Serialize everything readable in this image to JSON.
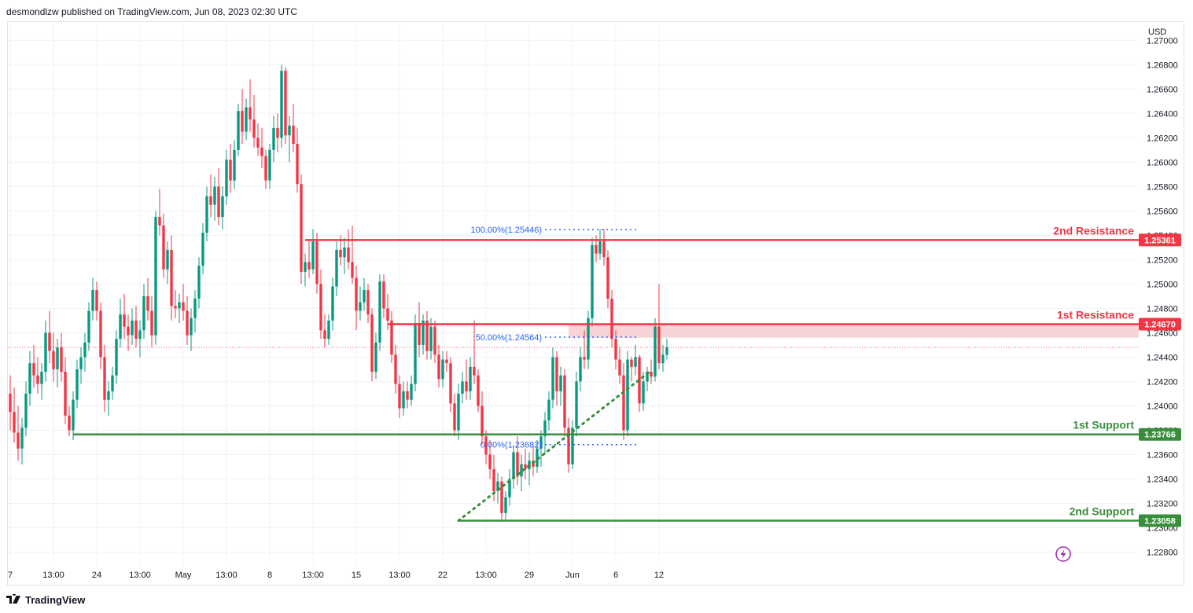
{
  "header": {
    "publisher_text": "desmondlzw published on TradingView.com, Jun 08, 2023 02:30 UTC"
  },
  "footer": {
    "brand": "TradingView"
  },
  "colors": {
    "up": "#089981",
    "down": "#f23645",
    "resistance": "#f23645",
    "support": "#388e3c",
    "fib": "#2962ff",
    "trendline": "#388e3c",
    "grid": "#f0f3fa",
    "zone": "#f8c9cd"
  },
  "chart_data": {
    "type": "candlestick",
    "currency_label": "USD",
    "ylim": [
      1.227,
      1.2715
    ],
    "y_ticks": [
      "1.27000",
      "1.26800",
      "1.26600",
      "1.26400",
      "1.26200",
      "1.26000",
      "1.25800",
      "1.25600",
      "1.25400",
      "1.25200",
      "1.25000",
      "1.24800",
      "1.24600",
      "1.24400",
      "1.24200",
      "1.24000",
      "1.23800",
      "1.23600",
      "1.23400",
      "1.23200",
      "1.23000",
      "1.22800"
    ],
    "x_ticks": [
      {
        "label": "7",
        "index": 0
      },
      {
        "label": "13:00",
        "index": 11
      },
      {
        "label": "24",
        "index": 22
      },
      {
        "label": "13:00",
        "index": 33
      },
      {
        "label": "May",
        "index": 44
      },
      {
        "label": "13:00",
        "index": 55
      },
      {
        "label": "8",
        "index": 66
      },
      {
        "label": "13:00",
        "index": 77
      },
      {
        "label": "15",
        "index": 88
      },
      {
        "label": "13:00",
        "index": 99
      },
      {
        "label": "22",
        "index": 110
      },
      {
        "label": "13:00",
        "index": 121
      },
      {
        "label": "29",
        "index": 132
      },
      {
        "label": "Jun",
        "index": 143
      },
      {
        "label": "6",
        "index": 154
      },
      {
        "label": "12",
        "index": 165
      }
    ],
    "candles": {
      "note": "OHLC values approximated from the chart; each candle is [open, high, low, close]",
      "ohlc": [
        [
          1.241,
          1.2425,
          1.238,
          1.2395
        ],
        [
          1.2395,
          1.2415,
          1.237,
          1.2378
        ],
        [
          1.2378,
          1.24,
          1.2355,
          1.2365
        ],
        [
          1.2365,
          1.239,
          1.2352,
          1.2382
        ],
        [
          1.2382,
          1.242,
          1.2375,
          1.241
        ],
        [
          1.241,
          1.2445,
          1.24,
          1.2435
        ],
        [
          1.2435,
          1.245,
          1.2415,
          1.2425
        ],
        [
          1.2425,
          1.244,
          1.241,
          1.2418
        ],
        [
          1.2418,
          1.2435,
          1.2405,
          1.2428
        ],
        [
          1.2428,
          1.247,
          1.242,
          1.246
        ],
        [
          1.246,
          1.2478,
          1.2435,
          1.2445
        ],
        [
          1.2445,
          1.246,
          1.242,
          1.243
        ],
        [
          1.243,
          1.2455,
          1.2415,
          1.2448
        ],
        [
          1.2448,
          1.246,
          1.242,
          1.2428
        ],
        [
          1.2428,
          1.244,
          1.2385,
          1.2392
        ],
        [
          1.2392,
          1.24,
          1.2375,
          1.238
        ],
        [
          1.238,
          1.2412,
          1.2372,
          1.2405
        ],
        [
          1.2405,
          1.2438,
          1.2398,
          1.243
        ],
        [
          1.243,
          1.2448,
          1.2418,
          1.244
        ],
        [
          1.244,
          1.246,
          1.2428,
          1.2452
        ],
        [
          1.2452,
          1.2485,
          1.2445,
          1.2478
        ],
        [
          1.2478,
          1.2505,
          1.247,
          1.2495
        ],
        [
          1.2495,
          1.2502,
          1.247,
          1.2478
        ],
        [
          1.2478,
          1.2485,
          1.243,
          1.244
        ],
        [
          1.244,
          1.245,
          1.2395,
          1.2405
        ],
        [
          1.2405,
          1.242,
          1.2392,
          1.2412
        ],
        [
          1.2412,
          1.2432,
          1.2405,
          1.2425
        ],
        [
          1.2425,
          1.2462,
          1.2418,
          1.2455
        ],
        [
          1.2455,
          1.2488,
          1.2448,
          1.2475
        ],
        [
          1.2475,
          1.2492,
          1.2455,
          1.2465
        ],
        [
          1.2465,
          1.2475,
          1.2445,
          1.2458
        ],
        [
          1.2458,
          1.248,
          1.245,
          1.247
        ],
        [
          1.247,
          1.2482,
          1.2448,
          1.2455
        ],
        [
          1.2455,
          1.247,
          1.244,
          1.2462
        ],
        [
          1.2462,
          1.25,
          1.2455,
          1.249
        ],
        [
          1.249,
          1.2505,
          1.247,
          1.2478
        ],
        [
          1.2478,
          1.249,
          1.2448,
          1.2458
        ],
        [
          1.2458,
          1.256,
          1.245,
          1.2555
        ],
        [
          1.2555,
          1.2578,
          1.254,
          1.2548
        ],
        [
          1.2548,
          1.2558,
          1.2505,
          1.2512
        ],
        [
          1.2512,
          1.2535,
          1.25,
          1.2528
        ],
        [
          1.2528,
          1.254,
          1.247,
          1.2482
        ],
        [
          1.2482,
          1.2495,
          1.2472,
          1.248
        ],
        [
          1.248,
          1.2492,
          1.2468,
          1.2485
        ],
        [
          1.2485,
          1.25,
          1.247,
          1.2478
        ],
        [
          1.2478,
          1.249,
          1.245,
          1.2458
        ],
        [
          1.2458,
          1.248,
          1.2445,
          1.2472
        ],
        [
          1.2472,
          1.2495,
          1.246,
          1.2488
        ],
        [
          1.2488,
          1.2522,
          1.248,
          1.2515
        ],
        [
          1.2515,
          1.255,
          1.2508,
          1.2542
        ],
        [
          1.2542,
          1.258,
          1.2535,
          1.2572
        ],
        [
          1.2572,
          1.259,
          1.2555,
          1.2565
        ],
        [
          1.2565,
          1.2588,
          1.2552,
          1.258
        ],
        [
          1.258,
          1.2595,
          1.2548,
          1.2555
        ],
        [
          1.2555,
          1.258,
          1.2545,
          1.2572
        ],
        [
          1.2572,
          1.261,
          1.2565,
          1.2602
        ],
        [
          1.2602,
          1.2615,
          1.2575,
          1.2585
        ],
        [
          1.2585,
          1.2618,
          1.2578,
          1.261
        ],
        [
          1.261,
          1.2648,
          1.2605,
          1.2642
        ],
        [
          1.2642,
          1.266,
          1.2615,
          1.2625
        ],
        [
          1.2625,
          1.2652,
          1.2618,
          1.2645
        ],
        [
          1.2645,
          1.2668,
          1.2625,
          1.2635
        ],
        [
          1.2635,
          1.2655,
          1.2612,
          1.262
        ],
        [
          1.262,
          1.2632,
          1.2605,
          1.2612
        ],
        [
          1.2612,
          1.2628,
          1.2595,
          1.2605
        ],
        [
          1.2605,
          1.261,
          1.2578,
          1.2585
        ],
        [
          1.2585,
          1.2615,
          1.2578,
          1.261
        ],
        [
          1.261,
          1.2638,
          1.26,
          1.2628
        ],
        [
          1.2628,
          1.264,
          1.2608,
          1.262
        ],
        [
          1.262,
          1.268,
          1.2612,
          1.2675
        ],
        [
          1.2675,
          1.2678,
          1.2615,
          1.2622
        ],
        [
          1.2622,
          1.2638,
          1.26,
          1.263
        ],
        [
          1.263,
          1.2648,
          1.2608,
          1.2615
        ],
        [
          1.2615,
          1.2628,
          1.2575,
          1.2582
        ],
        [
          1.2582,
          1.259,
          1.25,
          1.251
        ],
        [
          1.251,
          1.2525,
          1.2498,
          1.2518
        ],
        [
          1.2518,
          1.2535,
          1.2505,
          1.2512
        ],
        [
          1.2512,
          1.2545,
          1.2508,
          1.2535
        ],
        [
          1.2535,
          1.2542,
          1.2492,
          1.25
        ],
        [
          1.25,
          1.2512,
          1.2455,
          1.2462
        ],
        [
          1.2462,
          1.2475,
          1.2448,
          1.2455
        ],
        [
          1.2455,
          1.2475,
          1.245,
          1.247
        ],
        [
          1.247,
          1.2505,
          1.2462,
          1.2498
        ],
        [
          1.2498,
          1.2535,
          1.249,
          1.2528
        ],
        [
          1.2528,
          1.254,
          1.2515,
          1.2522
        ],
        [
          1.2522,
          1.2538,
          1.2508,
          1.253
        ],
        [
          1.253,
          1.2545,
          1.2512,
          1.2518
        ],
        [
          1.2518,
          1.2548,
          1.25,
          1.2505
        ],
        [
          1.2505,
          1.2515,
          1.2462,
          1.2478
        ],
        [
          1.2478,
          1.2498,
          1.247,
          1.2485
        ],
        [
          1.2485,
          1.2505,
          1.2478,
          1.2495
        ],
        [
          1.2495,
          1.25,
          1.2468,
          1.2475
        ],
        [
          1.2475,
          1.248,
          1.242,
          1.2428
        ],
        [
          1.2428,
          1.246,
          1.2422,
          1.2452
        ],
        [
          1.2452,
          1.2508,
          1.2445,
          1.2502
        ],
        [
          1.2502,
          1.2508,
          1.2472,
          1.248
        ],
        [
          1.248,
          1.2492,
          1.2462,
          1.247
        ],
        [
          1.247,
          1.2478,
          1.2435,
          1.2442
        ],
        [
          1.2442,
          1.245,
          1.241,
          1.2418
        ],
        [
          1.2418,
          1.2425,
          1.239,
          1.2398
        ],
        [
          1.2398,
          1.242,
          1.2392,
          1.2412
        ],
        [
          1.2412,
          1.242,
          1.2398,
          1.2405
        ],
        [
          1.2405,
          1.2425,
          1.24,
          1.2418
        ],
        [
          1.2418,
          1.2475,
          1.2412,
          1.2468
        ],
        [
          1.2468,
          1.2485,
          1.244,
          1.245
        ],
        [
          1.245,
          1.2475,
          1.2442,
          1.247
        ],
        [
          1.247,
          1.2478,
          1.2438,
          1.2445
        ],
        [
          1.2445,
          1.2472,
          1.2438,
          1.2465
        ],
        [
          1.2465,
          1.247,
          1.2435,
          1.2442
        ],
        [
          1.2442,
          1.245,
          1.2415,
          1.2422
        ],
        [
          1.2422,
          1.2445,
          1.2415,
          1.2438
        ],
        [
          1.2438,
          1.2445,
          1.2428,
          1.2435
        ],
        [
          1.2435,
          1.244,
          1.2395,
          1.2402
        ],
        [
          1.2402,
          1.241,
          1.2375,
          1.238
        ],
        [
          1.238,
          1.2418,
          1.2372,
          1.241
        ],
        [
          1.241,
          1.2428,
          1.2402,
          1.242
        ],
        [
          1.242,
          1.2438,
          1.2405,
          1.2412
        ],
        [
          1.2412,
          1.244,
          1.2405,
          1.2432
        ],
        [
          1.2432,
          1.247,
          1.2418,
          1.2425
        ],
        [
          1.2425,
          1.243,
          1.2395,
          1.24
        ],
        [
          1.24,
          1.2412,
          1.2368,
          1.2375
        ],
        [
          1.2375,
          1.238,
          1.2352,
          1.236
        ],
        [
          1.236,
          1.2372,
          1.234,
          1.2348
        ],
        [
          1.2348,
          1.236,
          1.2322,
          1.233
        ],
        [
          1.233,
          1.2345,
          1.232,
          1.2338
        ],
        [
          1.2338,
          1.2342,
          1.2305,
          1.2312
        ],
        [
          1.2312,
          1.233,
          1.2306,
          1.2325
        ],
        [
          1.2325,
          1.2348,
          1.2318,
          1.234
        ],
        [
          1.234,
          1.2368,
          1.2332,
          1.2362
        ],
        [
          1.2362,
          1.2375,
          1.2335,
          1.2342
        ],
        [
          1.2342,
          1.236,
          1.233,
          1.2352
        ],
        [
          1.2352,
          1.2365,
          1.234,
          1.2348
        ],
        [
          1.2348,
          1.2362,
          1.2335,
          1.2355
        ],
        [
          1.2355,
          1.2368,
          1.2342,
          1.235
        ],
        [
          1.235,
          1.2372,
          1.2345,
          1.2365
        ],
        [
          1.2365,
          1.238,
          1.235,
          1.2375
        ],
        [
          1.2375,
          1.2395,
          1.236,
          1.2388
        ],
        [
          1.2388,
          1.2412,
          1.238,
          1.2405
        ],
        [
          1.2405,
          1.2448,
          1.2398,
          1.244
        ],
        [
          1.244,
          1.2445,
          1.24,
          1.2412
        ],
        [
          1.2412,
          1.2432,
          1.24,
          1.2425
        ],
        [
          1.2425,
          1.243,
          1.2375,
          1.2382
        ],
        [
          1.2382,
          1.239,
          1.2345,
          1.2352
        ],
        [
          1.2352,
          1.2388,
          1.2348,
          1.2382
        ],
        [
          1.2382,
          1.2428,
          1.2375,
          1.242
        ],
        [
          1.242,
          1.2448,
          1.2412,
          1.244
        ],
        [
          1.244,
          1.2462,
          1.243,
          1.2438
        ],
        [
          1.2438,
          1.2478,
          1.243,
          1.2472
        ],
        [
          1.2472,
          1.2538,
          1.2465,
          1.2532
        ],
        [
          1.2532,
          1.254,
          1.2518,
          1.2525
        ],
        [
          1.2525,
          1.2545,
          1.252,
          1.2535
        ],
        [
          1.2535,
          1.2545,
          1.2515,
          1.2522
        ],
        [
          1.2522,
          1.2528,
          1.248,
          1.2488
        ],
        [
          1.2488,
          1.2495,
          1.2448,
          1.2455
        ],
        [
          1.2455,
          1.2462,
          1.243,
          1.2438
        ],
        [
          1.2438,
          1.2448,
          1.2418,
          1.2425
        ],
        [
          1.2425,
          1.2435,
          1.2372,
          1.238
        ],
        [
          1.238,
          1.2445,
          1.2375,
          1.2438
        ],
        [
          1.2438,
          1.244,
          1.242,
          1.2432
        ],
        [
          1.2432,
          1.245,
          1.2425,
          1.244
        ],
        [
          1.244,
          1.2442,
          1.2395,
          1.2402
        ],
        [
          1.2402,
          1.2428,
          1.2396,
          1.242
        ],
        [
          1.242,
          1.2432,
          1.2412,
          1.2428
        ],
        [
          1.2428,
          1.2438,
          1.2418,
          1.2424
        ],
        [
          1.2424,
          1.2472,
          1.242,
          1.2465
        ],
        [
          1.2465,
          1.25,
          1.243,
          1.2435
        ],
        [
          1.2435,
          1.245,
          1.2428,
          1.2442
        ],
        [
          1.2442,
          1.2455,
          1.2438,
          1.2448
        ]
      ]
    },
    "levels": [
      {
        "name": "2nd Resistance",
        "price": 1.25361,
        "tag": "1.25361",
        "kind": "resistance",
        "start_index": 75
      },
      {
        "name": "1st Resistance",
        "price": 1.2467,
        "tag": "1.24670",
        "kind": "resistance",
        "start_index": 96
      },
      {
        "name": "1st Support",
        "price": 1.23766,
        "tag": "1.23766",
        "kind": "support",
        "start_index": 16
      },
      {
        "name": "2nd Support",
        "price": 1.23058,
        "tag": "1.23058",
        "kind": "support",
        "start_index": 114
      }
    ],
    "fibonacci": [
      {
        "label": "100.00%(1.25446)",
        "price": 1.25446
      },
      {
        "label": "50.00%(1.24564)",
        "price": 1.24564
      },
      {
        "label": "0.00%(1.23682)",
        "price": 1.23682
      }
    ],
    "fib_start_index": 136,
    "fib_end_index": 160,
    "trendline": {
      "start": {
        "index": 114,
        "price": 1.23058
      },
      "end": {
        "index": 163,
        "price": 1.2429
      }
    },
    "resistance_zone": {
      "from_index": 142,
      "low": 1.2456,
      "high": 1.2467
    }
  }
}
